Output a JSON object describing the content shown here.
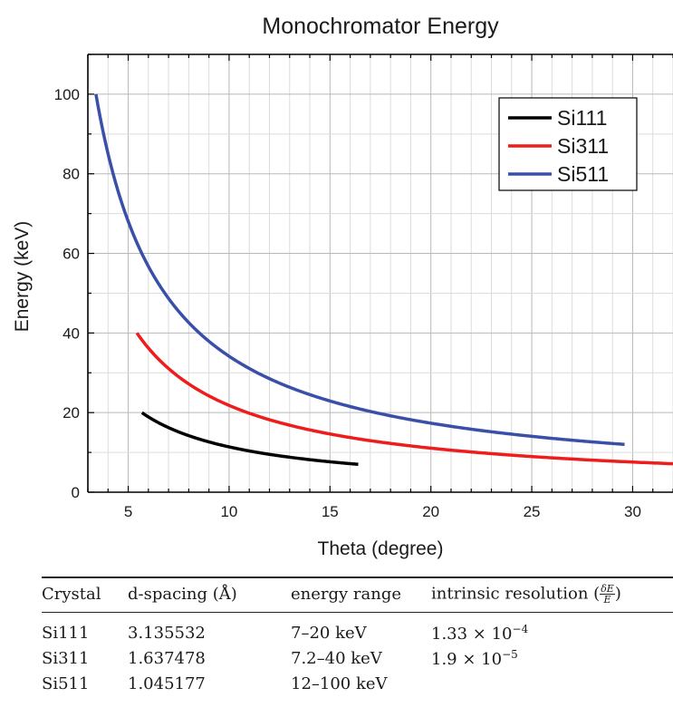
{
  "chart_data": {
    "type": "line",
    "title": "Monochromator Energy",
    "xlabel": "Theta (degree)",
    "ylabel": "Energy (keV)",
    "xlim": [
      3,
      32
    ],
    "ylim": [
      0,
      110
    ],
    "xticks": [
      5,
      10,
      15,
      20,
      25,
      30
    ],
    "yticks": [
      0,
      20,
      40,
      60,
      80,
      100
    ],
    "grid": true,
    "legend_position": "top-right",
    "series": [
      {
        "name": "Si111",
        "color": "#000000",
        "d_spacing": 3.135532,
        "theta_range": [
          5.68,
          16.4
        ],
        "energy_range": [
          7,
          20
        ]
      },
      {
        "name": "Si311",
        "color": "#ee1c1c",
        "d_spacing": 1.637478,
        "theta_range": [
          5.43,
          32
        ],
        "energy_range": [
          7.2,
          40
        ]
      },
      {
        "name": "Si511",
        "color": "#3a4fa8",
        "d_spacing": 1.045177,
        "theta_range": [
          3.4,
          29.6
        ],
        "energy_range": [
          12,
          100
        ]
      }
    ]
  },
  "table": {
    "headers": [
      "Crystal",
      "d-spacing (Å)",
      "energy range",
      "intrinsic resolution ("
    ],
    "header_frac_num": "δE",
    "header_frac_den": "E",
    "header_close": ")",
    "rows": [
      {
        "crystal": "Si111",
        "d": "3.135532",
        "range": "7–20 keV",
        "res_base": "1.33 × 10",
        "res_exp": "−4"
      },
      {
        "crystal": "Si311",
        "d": "1.637478",
        "range": "7.2–40 keV",
        "res_base": "1.9 × 10",
        "res_exp": "−5"
      },
      {
        "crystal": "Si511",
        "d": "1.045177",
        "range": "12–100 keV",
        "res_base": "",
        "res_exp": ""
      }
    ]
  }
}
